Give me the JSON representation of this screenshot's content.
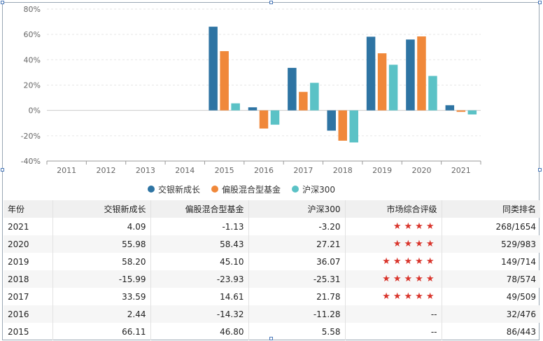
{
  "chart_data": {
    "type": "bar",
    "categories": [
      "2011",
      "2012",
      "2013",
      "2014",
      "2015",
      "2016",
      "2017",
      "2018",
      "2019",
      "2020",
      "2021"
    ],
    "series": [
      {
        "name": "交银新成长",
        "color": "#2e74a3",
        "values": [
          null,
          null,
          null,
          null,
          66.11,
          2.44,
          33.59,
          -15.99,
          58.2,
          55.98,
          4.09
        ]
      },
      {
        "name": "偏股混合型基金",
        "color": "#f0883a",
        "values": [
          null,
          null,
          null,
          null,
          46.8,
          -14.32,
          14.61,
          -23.93,
          45.1,
          58.43,
          -1.13
        ]
      },
      {
        "name": "沪深300",
        "color": "#5bc2c6",
        "values": [
          null,
          null,
          null,
          null,
          5.58,
          -11.28,
          21.78,
          -25.31,
          36.07,
          27.21,
          -3.2
        ]
      }
    ],
    "yticks": [
      "-40%",
      "-20%",
      "0%",
      "20%",
      "40%",
      "60%",
      "80%"
    ],
    "ylim": [
      -40,
      80
    ],
    "legend_position": "bottom"
  },
  "table": {
    "headers": [
      "年份",
      "交银新成长",
      "偏股混合型基金",
      "沪深300",
      "市场综合评级",
      "同类排名"
    ],
    "rows": [
      {
        "year": "2021",
        "fund": "4.09",
        "peer": "-1.13",
        "hs300": "-3.20",
        "rating": "★★★★",
        "rank": "268/1654"
      },
      {
        "year": "2020",
        "fund": "55.98",
        "peer": "58.43",
        "hs300": "27.21",
        "rating": "★★★★",
        "rank": "529/983"
      },
      {
        "year": "2019",
        "fund": "58.20",
        "peer": "45.10",
        "hs300": "36.07",
        "rating": "★★★★★",
        "rank": "149/714"
      },
      {
        "year": "2018",
        "fund": "-15.99",
        "peer": "-23.93",
        "hs300": "-25.31",
        "rating": "★★★★★",
        "rank": "78/574"
      },
      {
        "year": "2017",
        "fund": "33.59",
        "peer": "14.61",
        "hs300": "21.78",
        "rating": "★★★★★",
        "rank": "49/509"
      },
      {
        "year": "2016",
        "fund": "2.44",
        "peer": "-14.32",
        "hs300": "-11.28",
        "rating": "--",
        "rank": "32/476"
      },
      {
        "year": "2015",
        "fund": "66.11",
        "peer": "46.80",
        "hs300": "5.58",
        "rating": "--",
        "rank": "86/443"
      }
    ]
  }
}
